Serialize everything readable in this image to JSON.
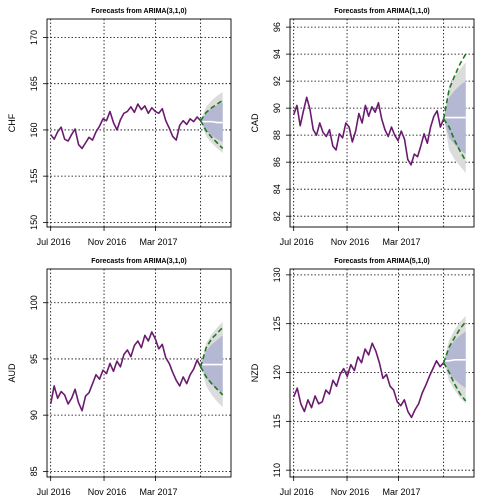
{
  "chart_data": [
    {
      "type": "line",
      "title": "Forecasts from ARIMA(3,1,0)",
      "ylabel": "CHF",
      "ylim": [
        149.5,
        172
      ],
      "yticks": [
        150,
        155,
        160,
        165,
        170
      ],
      "xticks": [
        "Jul 2016",
        "Nov 2016",
        "Mar 2017"
      ],
      "grid": true,
      "history": [
        159.5,
        159.0,
        159.8,
        160.3,
        159.0,
        158.8,
        159.5,
        160.1,
        158.4,
        158.0,
        158.6,
        159.2,
        158.9,
        159.8,
        160.4,
        161.2,
        161.0,
        162.0,
        160.8,
        160.0,
        161.1,
        161.8,
        162.0,
        162.5,
        161.9,
        162.8,
        162.2,
        162.6,
        161.8,
        162.4,
        162.0,
        161.8,
        162.3,
        161.0,
        160.2,
        159.3,
        158.9,
        160.5,
        161.0,
        160.6,
        161.2,
        160.9,
        161.4,
        161.0
      ],
      "forecast_mean": [
        160.9,
        160.9,
        160.8,
        160.8
      ],
      "lower_80": [
        159.9,
        159.4,
        159.0,
        158.7
      ],
      "upper_80": [
        161.9,
        162.4,
        162.7,
        163.0
      ],
      "lower_95": [
        159.3,
        158.6,
        158.0,
        157.5
      ],
      "upper_95": [
        162.5,
        163.2,
        163.7,
        164.1
      ],
      "dashed_high": [
        161.9,
        162.4,
        162.8,
        163.2
      ],
      "dashed_low": [
        159.9,
        159.2,
        158.6,
        158.0
      ]
    },
    {
      "type": "line",
      "title": "Forecasts from ARIMA(1,1,0)",
      "ylabel": "CAD",
      "ylim": [
        81.2,
        96.6
      ],
      "yticks": [
        82,
        84,
        86,
        88,
        90,
        92,
        94,
        96
      ],
      "xticks": [
        "Jul 2016",
        "Nov 2016",
        "Mar 2017"
      ],
      "grid": true,
      "history": [
        89.5,
        90.2,
        88.7,
        89.8,
        90.8,
        89.9,
        88.4,
        88.0,
        88.9,
        88.2,
        87.9,
        88.4,
        87.2,
        86.9,
        88.1,
        87.8,
        88.9,
        88.6,
        87.5,
        88.3,
        89.6,
        88.9,
        90.2,
        89.4,
        90.1,
        89.7,
        90.4,
        89.2,
        88.4,
        87.9,
        88.6,
        88.0,
        87.6,
        88.3,
        87.7,
        86.2,
        85.8,
        86.6,
        86.4,
        87.2,
        88.1,
        87.4,
        88.6,
        89.4,
        89.8,
        88.6,
        89.2
      ],
      "forecast_mean": [
        89.3,
        89.3,
        89.3,
        89.3
      ],
      "lower_80": [
        87.8,
        87.3,
        86.9,
        86.6
      ],
      "upper_80": [
        90.8,
        91.3,
        91.7,
        92.0
      ],
      "lower_95": [
        86.9,
        86.2,
        85.7,
        85.2
      ],
      "upper_95": [
        91.7,
        92.4,
        92.9,
        93.4
      ],
      "dashed_high": [
        91.4,
        92.4,
        93.3,
        94.0
      ],
      "dashed_low": [
        88.6,
        87.6,
        86.8,
        86.1
      ]
    },
    {
      "type": "line",
      "title": "Forecasts from ARIMA(3,1,0)",
      "ylabel": "AUD",
      "ylim": [
        84.5,
        103
      ],
      "yticks": [
        85,
        90,
        95,
        100
      ],
      "xticks": [
        "Jul 2016",
        "Nov 2016",
        "Mar 2017"
      ],
      "grid": true,
      "history": [
        91.0,
        92.6,
        91.5,
        92.1,
        91.8,
        91.0,
        91.5,
        92.3,
        91.1,
        90.4,
        91.7,
        92.0,
        92.8,
        93.6,
        93.2,
        94.0,
        93.7,
        94.6,
        93.9,
        94.8,
        94.3,
        95.4,
        95.8,
        95.2,
        96.2,
        96.6,
        96.0,
        97.1,
        96.6,
        97.4,
        96.8,
        95.9,
        96.3,
        95.1,
        94.6,
        93.8,
        93.1,
        92.6,
        93.4,
        92.8,
        93.6,
        94.1,
        94.9,
        94.3
      ],
      "forecast_mean": [
        94.5,
        94.5,
        94.5,
        94.5
      ],
      "lower_80": [
        93.3,
        92.7,
        92.3,
        91.9
      ],
      "upper_80": [
        95.7,
        96.3,
        96.7,
        97.1
      ],
      "lower_95": [
        92.6,
        91.8,
        91.2,
        90.7
      ],
      "upper_95": [
        96.4,
        97.2,
        97.8,
        98.3
      ],
      "dashed_high": [
        96.0,
        96.8,
        97.3,
        97.8
      ],
      "dashed_low": [
        93.4,
        92.8,
        92.3,
        91.8
      ]
    },
    {
      "type": "line",
      "title": "Forecasts from ARIMA(5,1,0)",
      "ylabel": "NZD",
      "ylim": [
        109.3,
        130.6
      ],
      "yticks": [
        110,
        115,
        120,
        125,
        130
      ],
      "xticks": [
        "Jul 2016",
        "Nov 2016",
        "Mar 2017"
      ],
      "grid": true,
      "history": [
        117.5,
        118.4,
        116.8,
        116.0,
        117.2,
        116.4,
        117.6,
        116.8,
        117.0,
        118.2,
        117.8,
        119.2,
        118.6,
        119.8,
        120.4,
        119.6,
        120.8,
        120.2,
        121.6,
        121.0,
        122.4,
        121.8,
        123.0,
        122.2,
        121.0,
        119.4,
        119.8,
        118.6,
        118.2,
        117.0,
        116.6,
        117.2,
        116.0,
        115.4,
        116.2,
        116.8,
        117.9,
        118.7,
        119.6,
        120.4,
        121.2,
        120.6,
        121.0
      ],
      "forecast_mean": [
        121.2,
        121.3,
        121.3,
        121.3
      ],
      "lower_80": [
        119.9,
        119.3,
        118.8,
        118.4
      ],
      "upper_80": [
        122.5,
        123.3,
        123.8,
        124.2
      ],
      "lower_95": [
        119.1,
        118.2,
        117.4,
        116.8
      ],
      "upper_95": [
        123.3,
        124.4,
        125.2,
        125.8
      ],
      "dashed_high": [
        122.6,
        123.6,
        124.5,
        125.2
      ],
      "dashed_low": [
        120.0,
        118.8,
        117.8,
        117.1
      ]
    }
  ],
  "colors": {
    "history": "#6a1b6f",
    "band95": "#dcdcdc",
    "band80": "#b4b8d2",
    "mean": "#ffffff",
    "dashed": "#1f7a1f",
    "grid": "#000000"
  }
}
